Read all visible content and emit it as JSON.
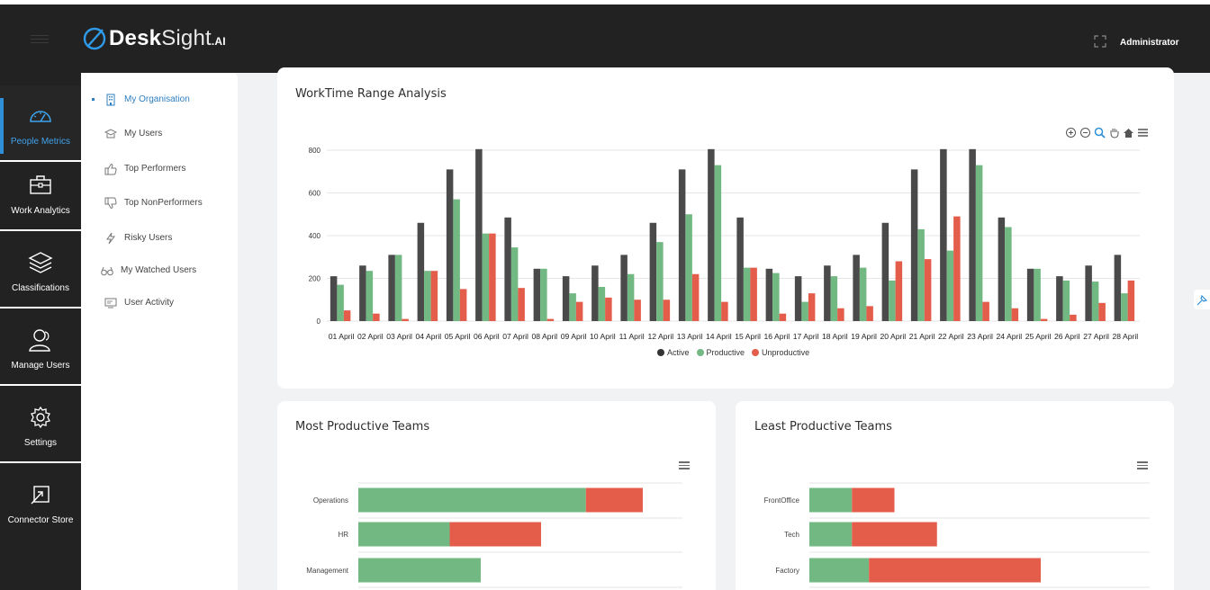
{
  "app": {
    "logo_main": "Desk",
    "logo_light": "Sight",
    "logo_suffix": ".AI",
    "user_name": "Administrator"
  },
  "leftnav": {
    "items": [
      {
        "label": "People Metrics",
        "icon": "speedometer-icon",
        "active": true
      },
      {
        "label": "Work Analytics",
        "icon": "briefcase-icon",
        "active": false
      },
      {
        "label": "Classifications",
        "icon": "layers-icon",
        "active": false
      },
      {
        "label": "Manage Users",
        "icon": "users-icon",
        "active": false
      },
      {
        "label": "Settings",
        "icon": "gear-icon",
        "active": false
      },
      {
        "label": "Connector Store",
        "icon": "connector-icon",
        "active": false
      }
    ]
  },
  "submenu": {
    "items": [
      {
        "label": "My Organisation",
        "icon": "building-icon",
        "active": true
      },
      {
        "label": "My Users",
        "icon": "user-group-icon",
        "active": false
      },
      {
        "label": "Top Performers",
        "icon": "thumbs-up-icon",
        "active": false
      },
      {
        "label": "Top NonPerformers",
        "icon": "thumbs-down-icon",
        "active": false
      },
      {
        "label": "Risky Users",
        "icon": "lightning-icon",
        "active": false
      },
      {
        "label": "My Watched Users",
        "icon": "binoculars-icon",
        "active": false
      },
      {
        "label": "User Activity",
        "icon": "monitor-icon",
        "active": false
      }
    ]
  },
  "colors": {
    "active": "#4a4a4a",
    "productive": "#72b882",
    "unproductive": "#e45c4a",
    "accent": "#2f8fd8"
  },
  "worktime_card": {
    "title": "WorkTime Range Analysis",
    "chart_data": {
      "type": "bar",
      "title": "WorkTime Range Analysis",
      "categories": [
        "01 April",
        "02 April",
        "03 April",
        "04 April",
        "05 April",
        "06 April",
        "07 April",
        "08 April",
        "09 April",
        "10 April",
        "11 April",
        "12 April",
        "13 April",
        "14 April",
        "15 April",
        "16 April",
        "17 April",
        "18 April",
        "19 April",
        "20 April",
        "21 April",
        "22 April",
        "23 April",
        "24 April",
        "25 April",
        "26 April",
        "27 April",
        "28 April"
      ],
      "y_ticks": [
        "0",
        "200",
        "400",
        "600",
        "800"
      ],
      "ylim": [
        0,
        800
      ],
      "grid": true,
      "legend_position": "bottom",
      "series": [
        {
          "name": "Active",
          "color": "#4a4a4a",
          "values": [
            210,
            260,
            310,
            460,
            710,
            805,
            485,
            245,
            210,
            260,
            310,
            460,
            710,
            805,
            485,
            245,
            210,
            260,
            310,
            460,
            710,
            805,
            805,
            485,
            245,
            210,
            260,
            310
          ]
        },
        {
          "name": "Productive",
          "color": "#72b882",
          "values": [
            170,
            235,
            310,
            235,
            570,
            410,
            345,
            245,
            130,
            160,
            220,
            370,
            500,
            730,
            250,
            225,
            90,
            210,
            250,
            190,
            430,
            330,
            730,
            440,
            245,
            190,
            185,
            130
          ]
        },
        {
          "name": "Unproductive",
          "color": "#e45c4a",
          "values": [
            50,
            35,
            10,
            235,
            150,
            410,
            155,
            10,
            90,
            110,
            100,
            100,
            220,
            90,
            250,
            35,
            130,
            60,
            70,
            280,
            290,
            490,
            90,
            60,
            10,
            30,
            85,
            190
          ]
        }
      ]
    }
  },
  "most_productive_card": {
    "title": "Most Productive Teams",
    "chart_data": {
      "type": "bar",
      "orientation": "horizontal",
      "stacked": true,
      "title": "Most Productive Teams",
      "categories": [
        "Operations",
        "HR",
        "Management"
      ],
      "series": [
        {
          "name": "Productive",
          "color": "#72b882",
          "values": [
            66,
            26.5,
            35.5
          ]
        },
        {
          "name": "Unproductive",
          "color": "#e45c4a",
          "values": [
            16.5,
            26.5,
            0
          ]
        }
      ],
      "xlim": [
        0,
        94
      ]
    }
  },
  "least_productive_card": {
    "title": "Least Productive Teams",
    "chart_data": {
      "type": "bar",
      "orientation": "horizontal",
      "stacked": true,
      "title": "Least Productive Teams",
      "categories": [
        "FrontOffice",
        "Tech",
        "Factory"
      ],
      "series": [
        {
          "name": "Productive",
          "color": "#72b882",
          "values": [
            12.5,
            12.5,
            17.5
          ]
        },
        {
          "name": "Unproductive",
          "color": "#e45c4a",
          "values": [
            12.5,
            25,
            50.5
          ]
        }
      ],
      "xlim": [
        0,
        100
      ]
    }
  }
}
